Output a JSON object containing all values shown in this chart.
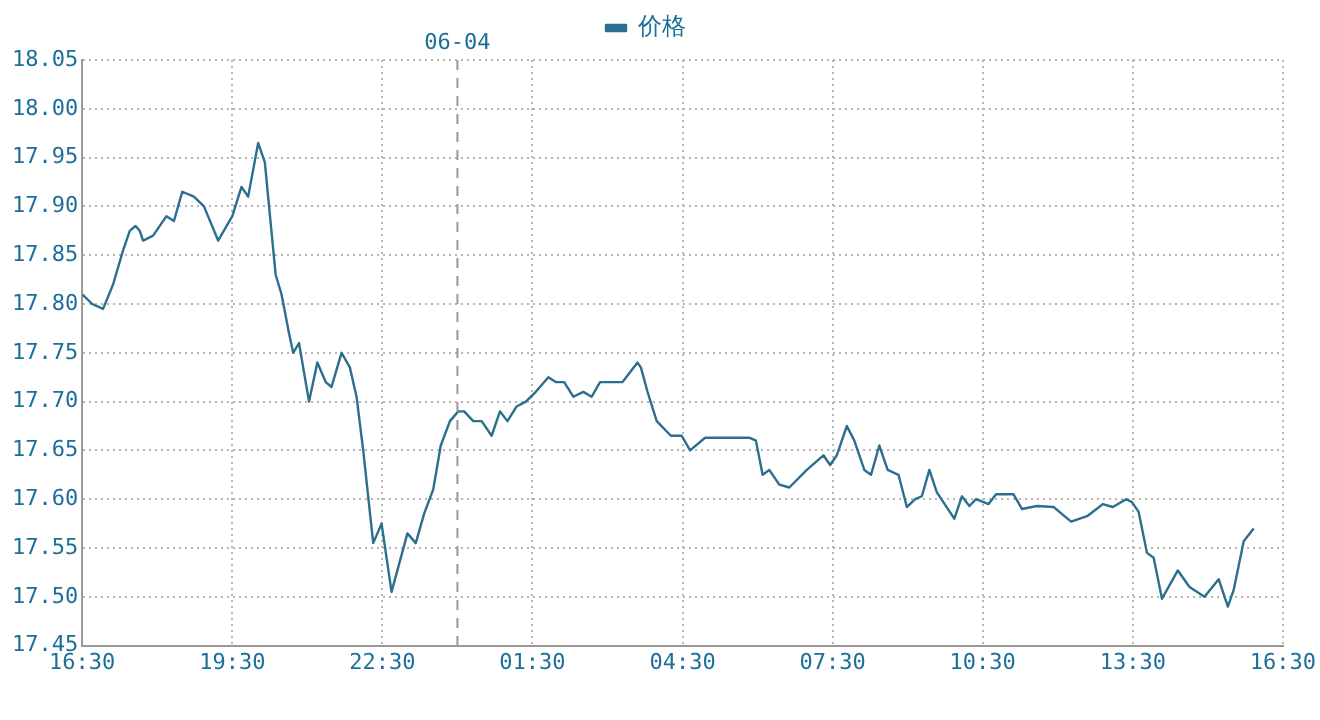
{
  "chart_data": {
    "type": "line",
    "legend": "top",
    "grid": true,
    "marker": "none",
    "line_style": "solid",
    "xlim": [
      "--06-03T16:30",
      "--06-04T16:30"
    ],
    "xticks": [
      {
        "value": "--06-03T16:30",
        "label": "16:30"
      },
      {
        "value": "--06-03T19:30",
        "label": "19:30"
      },
      {
        "value": "--06-03T22:30",
        "label": "22:30"
      },
      {
        "value": "--06-04T01:30",
        "label": "01:30"
      },
      {
        "value": "--06-04T04:30",
        "label": "04:30"
      },
      {
        "value": "--06-04T07:30",
        "label": "07:30"
      },
      {
        "value": "--06-04T10:30",
        "label": "10:30"
      },
      {
        "value": "--06-04T13:30",
        "label": "13:30"
      },
      {
        "value": "--06-04T16:30",
        "label": "16:30"
      }
    ],
    "ylim": [
      17.45,
      18.05
    ],
    "yticks": [
      {
        "value": 17.45,
        "label": "17.45"
      },
      {
        "value": 17.5,
        "label": "17.50"
      },
      {
        "value": 17.55,
        "label": "17.55"
      },
      {
        "value": 17.6,
        "label": "17.60"
      },
      {
        "value": 17.65,
        "label": "17.65"
      },
      {
        "value": 17.7,
        "label": "17.70"
      },
      {
        "value": 17.75,
        "label": "17.75"
      },
      {
        "value": 17.8,
        "label": "17.80"
      },
      {
        "value": 17.85,
        "label": "17.85"
      },
      {
        "value": 17.9,
        "label": "17.90"
      },
      {
        "value": 17.95,
        "label": "17.95"
      },
      {
        "value": 18.0,
        "label": "18.00"
      },
      {
        "value": 18.05,
        "label": "18.05"
      }
    ],
    "ref_lines": [
      {
        "axis": "x",
        "value": "--06-04T00:00",
        "label": "06-04",
        "line_style": "dashed",
        "color": "#999999"
      }
    ],
    "series": [
      {
        "name": "价格",
        "color": "#2b6f8e",
        "x": [
          "--06-03T16:30",
          "--06-03T16:42",
          "--06-03T16:55",
          "--06-03T17:07",
          "--06-03T17:19",
          "--06-03T17:27",
          "--06-03T17:34",
          "--06-03T17:39",
          "--06-03T17:43",
          "--06-03T17:55",
          "--06-03T18:11",
          "--06-03T18:20",
          "--06-03T18:30",
          "--06-03T18:44",
          "--06-03T18:56",
          "--06-03T19:13",
          "--06-03T19:30",
          "--06-03T19:41",
          "--06-03T19:49",
          "--06-03T20:01",
          "--06-03T20:09",
          "--06-03T20:22",
          "--06-03T20:29",
          "--06-03T20:38",
          "--06-03T20:43",
          "--06-03T20:50",
          "--06-03T21:02",
          "--06-03T21:12",
          "--06-03T21:22",
          "--06-03T21:29",
          "--06-03T21:41",
          "--06-03T21:51",
          "--06-03T21:59",
          "--06-03T22:07",
          "--06-03T22:19",
          "--06-03T22:29",
          "--06-03T22:41",
          "--06-03T23:00",
          "--06-03T23:10",
          "--06-03T23:20",
          "--06-03T23:31",
          "--06-03T23:40",
          "--06-03T23:51",
          "--06-04T00:01",
          "--06-04T00:08",
          "--06-04T00:19",
          "--06-04T00:29",
          "--06-04T00:41",
          "--06-04T00:51",
          "--06-04T01:00",
          "--06-04T01:11",
          "--06-04T01:22",
          "--06-04T01:34",
          "--06-04T01:49",
          "--06-04T01:58",
          "--06-04T02:08",
          "--06-04T02:19",
          "--06-04T02:31",
          "--06-04T02:41",
          "--06-04T02:51",
          "--06-04T03:04",
          "--06-04T03:18",
          "--06-04T03:36",
          "--06-04T03:40",
          "--06-04T03:48",
          "--06-04T03:59",
          "--06-04T04:16",
          "--06-04T04:29",
          "--06-04T04:39",
          "--06-04T04:57",
          "--06-04T05:50",
          "--06-04T05:58",
          "--06-04T06:06",
          "--06-04T06:14",
          "--06-04T06:26",
          "--06-04T06:38",
          "--06-04T06:59",
          "--06-04T07:19",
          "--06-04T07:27",
          "--06-04T07:35",
          "--06-04T07:47",
          "--06-04T07:56",
          "--06-04T08:08",
          "--06-04T08:16",
          "--06-04T08:26",
          "--06-04T08:36",
          "--06-04T08:49",
          "--06-04T08:59",
          "--06-04T09:09",
          "--06-04T09:17",
          "--06-04T09:26",
          "--06-04T09:35",
          "--06-04T09:56",
          "--06-04T10:05",
          "--06-04T10:14",
          "--06-04T10:22",
          "--06-04T10:37",
          "--06-04T10:46",
          "--06-04T11:07",
          "--06-04T11:17",
          "--06-04T11:35",
          "--06-04T11:55",
          "--06-04T12:16",
          "--06-04T12:36",
          "--06-04T12:54",
          "--06-04T13:06",
          "--06-04T13:22",
          "--06-04T13:29",
          "--06-04T13:37",
          "--06-04T13:47",
          "--06-04T13:55",
          "--06-04T14:05",
          "--06-04T14:24",
          "--06-04T14:38",
          "--06-04T14:56",
          "--06-04T15:13",
          "--06-04T15:24",
          "--06-04T15:31",
          "--06-04T15:43",
          "--06-04T15:55"
        ],
        "values": [
          17.81,
          17.8,
          17.795,
          17.82,
          17.855,
          17.875,
          17.88,
          17.875,
          17.865,
          17.87,
          17.89,
          17.885,
          17.915,
          17.91,
          17.9,
          17.865,
          17.89,
          17.92,
          17.91,
          17.965,
          17.945,
          17.83,
          17.81,
          17.77,
          17.75,
          17.76,
          17.7,
          17.74,
          17.72,
          17.715,
          17.75,
          17.735,
          17.705,
          17.65,
          17.555,
          17.575,
          17.505,
          17.565,
          17.555,
          17.585,
          17.61,
          17.655,
          17.68,
          17.69,
          17.69,
          17.68,
          17.68,
          17.665,
          17.69,
          17.68,
          17.695,
          17.7,
          17.71,
          17.725,
          17.72,
          17.72,
          17.705,
          17.71,
          17.705,
          17.72,
          17.72,
          17.72,
          17.74,
          17.735,
          17.71,
          17.68,
          17.665,
          17.665,
          17.65,
          17.663,
          17.663,
          17.66,
          17.625,
          17.63,
          17.615,
          17.612,
          17.63,
          17.645,
          17.635,
          17.645,
          17.675,
          17.66,
          17.63,
          17.625,
          17.655,
          17.63,
          17.625,
          17.592,
          17.6,
          17.603,
          17.63,
          17.607,
          17.58,
          17.603,
          17.593,
          17.6,
          17.595,
          17.605,
          17.605,
          17.59,
          17.593,
          17.592,
          17.577,
          17.583,
          17.595,
          17.592,
          17.6,
          17.597,
          17.587,
          17.545,
          17.54,
          17.498,
          17.527,
          17.51,
          17.5,
          17.518,
          17.49,
          17.507,
          17.557,
          17.57
        ]
      }
    ]
  }
}
